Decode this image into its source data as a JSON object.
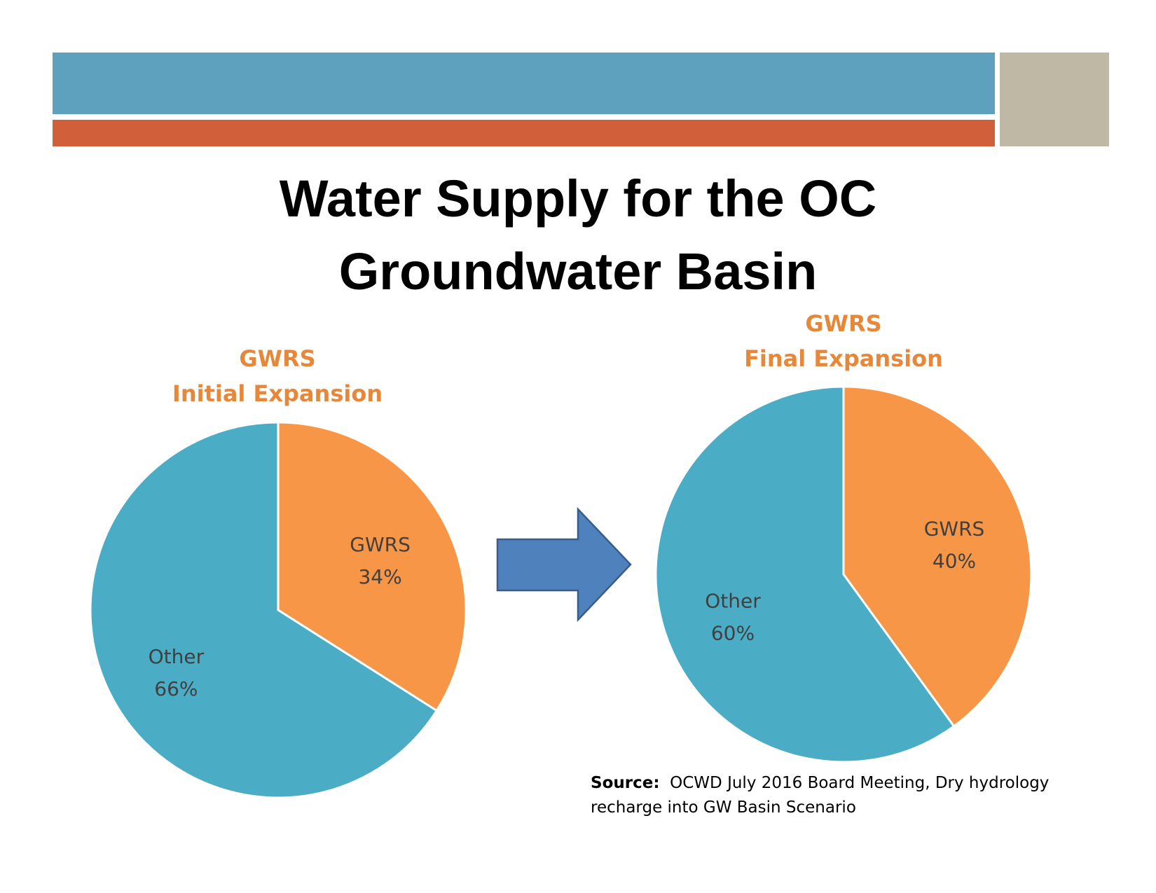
{
  "header": {
    "colors": {
      "blue_band": "#5DA1BE",
      "orange_band": "#D1603A",
      "tan_block": "#BFB8A5"
    }
  },
  "title": {
    "line1": "Water Supply for the OC",
    "line2": "Groundwater Basin"
  },
  "chart_data": [
    {
      "type": "pie",
      "title_lines": [
        "GWRS",
        "Initial Expansion"
      ],
      "slices": [
        {
          "label": "GWRS",
          "value": 34,
          "value_label": "34%",
          "color": "#F79646"
        },
        {
          "label": "Other",
          "value": 66,
          "value_label": "66%",
          "color": "#4BACC6"
        }
      ]
    },
    {
      "type": "pie",
      "title_lines": [
        "GWRS",
        "Final Expansion"
      ],
      "slices": [
        {
          "label": "GWRS",
          "value": 40,
          "value_label": "40%",
          "color": "#F79646"
        },
        {
          "label": "Other",
          "value": 60,
          "value_label": "60%",
          "color": "#4BACC6"
        }
      ]
    }
  ],
  "arrow": {
    "icon": "right-arrow-icon",
    "fill": "#4F81BD",
    "stroke": "#385D8A"
  },
  "source": {
    "label": "Source:",
    "text": "OCWD July 2016 Board Meeting, Dry hydrology",
    "text_line2": "recharge into GW Basin Scenario"
  }
}
